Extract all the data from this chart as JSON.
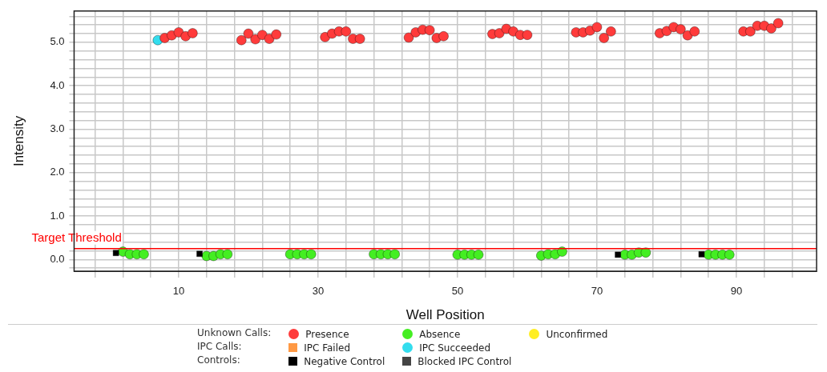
{
  "chart_data": {
    "type": "scatter",
    "xlabel": "Well Position",
    "ylabel": "Intensity",
    "xlim": [
      -5,
      101.5
    ],
    "ylim": [
      -0.27,
      5.72
    ],
    "xticks": [
      {
        "value": -2,
        "label": null
      },
      {
        "value": 2,
        "label": null
      },
      {
        "value": 6,
        "label": null
      },
      10,
      {
        "value": 14,
        "label": null
      },
      {
        "value": 18,
        "label": null
      },
      {
        "value": 22,
        "label": null
      },
      {
        "value": 26,
        "label": null
      },
      30,
      {
        "value": 34,
        "label": null
      },
      {
        "value": 38,
        "label": null
      },
      {
        "value": 42,
        "label": null
      },
      {
        "value": 46,
        "label": null
      },
      50,
      {
        "value": 54,
        "label": null
      },
      {
        "value": 58,
        "label": null
      },
      {
        "value": 62,
        "label": null
      },
      {
        "value": 66,
        "label": null
      },
      70,
      {
        "value": 74,
        "label": null
      },
      {
        "value": 78,
        "label": null
      },
      {
        "value": 82,
        "label": null
      },
      {
        "value": 86,
        "label": null
      },
      90,
      {
        "value": 94,
        "label": null
      },
      {
        "value": 98,
        "label": null
      }
    ],
    "yticks": [
      {
        "value": -0.2,
        "label": null
      },
      {
        "value": 0,
        "label": "0.0"
      },
      {
        "value": 0.2,
        "label": null
      },
      {
        "value": 0.4,
        "label": null
      },
      {
        "value": 0.6,
        "label": null
      },
      {
        "value": 0.8,
        "label": null
      },
      {
        "value": 1,
        "label": "1.0"
      },
      {
        "value": 1.2,
        "label": null
      },
      {
        "value": 1.4,
        "label": null
      },
      {
        "value": 1.6,
        "label": null
      },
      {
        "value": 1.8,
        "label": null
      },
      {
        "value": 2,
        "label": "2.0"
      },
      {
        "value": 2.2,
        "label": null
      },
      {
        "value": 2.4,
        "label": null
      },
      {
        "value": 2.6,
        "label": null
      },
      {
        "value": 2.8,
        "label": null
      },
      {
        "value": 3,
        "label": "3.0"
      },
      {
        "value": 3.2,
        "label": null
      },
      {
        "value": 3.4,
        "label": null
      },
      {
        "value": 3.6,
        "label": null
      },
      {
        "value": 3.8,
        "label": null
      },
      {
        "value": 4,
        "label": "4.0"
      },
      {
        "value": 4.2,
        "label": null
      },
      {
        "value": 4.4,
        "label": null
      },
      {
        "value": 4.6,
        "label": null
      },
      {
        "value": 4.8,
        "label": null
      },
      {
        "value": 5,
        "label": "5.0"
      },
      {
        "value": 5.2,
        "label": null
      },
      {
        "value": 5.4,
        "label": null
      },
      {
        "value": 5.6,
        "label": null
      }
    ],
    "grid": true,
    "legend": "bottom",
    "ref_lines": [
      {
        "axis": "y",
        "value": 0.25,
        "label": "Target Threshold",
        "color": "#ff0000"
      }
    ],
    "annotations": [
      "Unknown Calls:",
      "IPC Calls:",
      "Controls:"
    ],
    "series": [
      {
        "name": "Presence",
        "color": "#ff3b3b",
        "marker": "circle",
        "x": [
          8,
          9,
          10,
          11,
          12,
          19,
          20,
          21,
          22,
          23,
          24,
          31,
          32,
          33,
          34,
          35,
          36,
          43,
          44,
          45,
          46,
          47,
          48,
          55,
          56,
          57,
          58,
          59,
          60,
          67,
          68,
          69,
          70,
          71,
          72,
          79,
          80,
          81,
          82,
          83,
          84,
          91,
          92,
          93,
          94,
          95,
          96
        ],
        "values": [
          5.1,
          5.16,
          5.23,
          5.14,
          5.21,
          5.05,
          5.2,
          5.07,
          5.17,
          5.08,
          5.18,
          5.12,
          5.2,
          5.25,
          5.25,
          5.08,
          5.08,
          5.11,
          5.23,
          5.29,
          5.28,
          5.1,
          5.14,
          5.19,
          5.21,
          5.31,
          5.25,
          5.17,
          5.17,
          5.23,
          5.23,
          5.27,
          5.35,
          5.1,
          5.25,
          5.21,
          5.26,
          5.35,
          5.3,
          5.16,
          5.25,
          5.25,
          5.25,
          5.38,
          5.38,
          5.32,
          5.44
        ]
      },
      {
        "name": "IPC Failed",
        "color": "#ff9944",
        "marker": "square"
      },
      {
        "name": "Negative Control",
        "color": "#000000",
        "marker": "square",
        "x": [
          1,
          13,
          73,
          85
        ],
        "values": [
          0.15,
          0.13,
          0.11,
          0.12
        ]
      },
      {
        "name": "Absence",
        "color": "#44ee22",
        "marker": "circle",
        "x": [
          2,
          3,
          4,
          5,
          14,
          15,
          16,
          17,
          26,
          27,
          28,
          29,
          38,
          39,
          40,
          41,
          50,
          51,
          52,
          53,
          62,
          63,
          64,
          65,
          74,
          75,
          76,
          77,
          86,
          87,
          88,
          89
        ],
        "values": [
          0.18,
          0.12,
          0.12,
          0.12,
          0.08,
          0.08,
          0.12,
          0.12,
          0.12,
          0.12,
          0.12,
          0.12,
          0.12,
          0.12,
          0.12,
          0.12,
          0.11,
          0.11,
          0.11,
          0.11,
          0.09,
          0.12,
          0.12,
          0.18,
          0.11,
          0.11,
          0.16,
          0.16,
          0.11,
          0.11,
          0.11,
          0.11
        ]
      },
      {
        "name": "IPC Succeeded",
        "color": "#33ddee",
        "marker": "circle",
        "x": [
          7
        ],
        "values": [
          5.05
        ]
      },
      {
        "name": "Blocked IPC Control",
        "color": "#444444",
        "marker": "square"
      },
      {
        "name": "Unconfirmed",
        "color": "#ffee22",
        "marker": "circle"
      }
    ]
  }
}
